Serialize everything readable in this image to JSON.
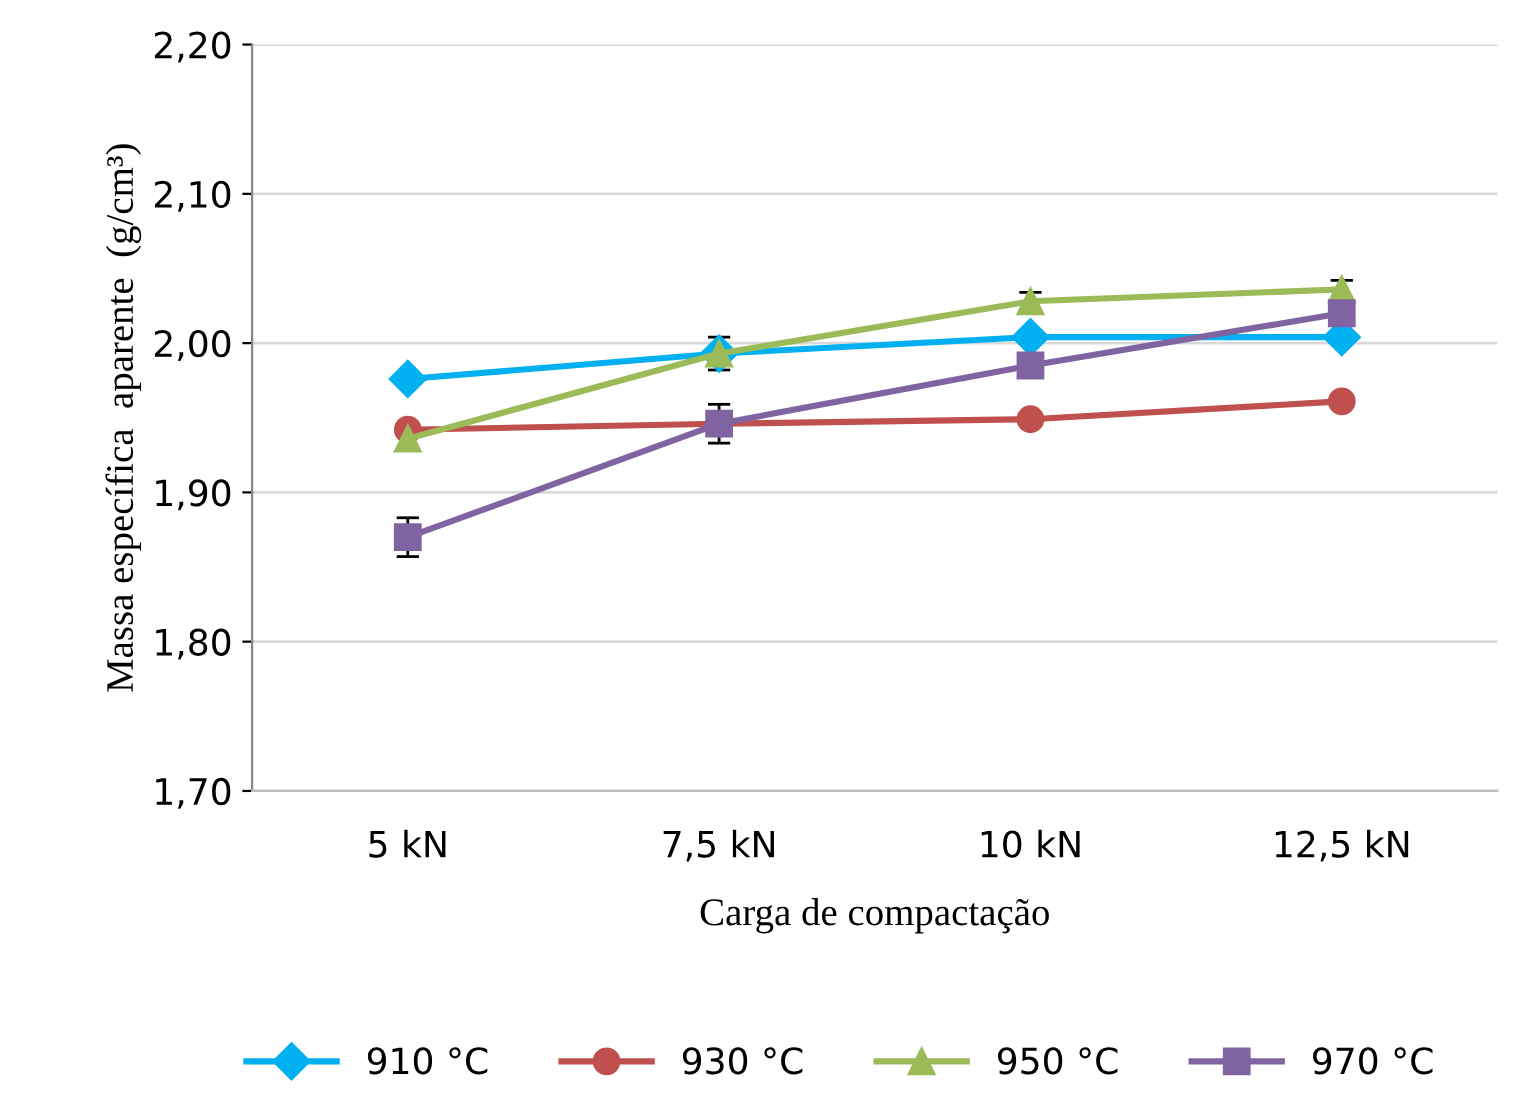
{
  "chart_data": {
    "type": "line",
    "xlabel": "Carga de compactação",
    "ylabel": "Massa específica  aparente  (g/cm³)",
    "categories": [
      "5 kN",
      "7,5 kN",
      "10 kN",
      "12,5 kN"
    ],
    "series": [
      {
        "name": "910 °C",
        "color": "#00b0f0",
        "marker": "diamond",
        "values": [
          1.976,
          1.993,
          2.004,
          2.004
        ]
      },
      {
        "name": "930 °C",
        "color": "#c0504d",
        "marker": "circle",
        "values": [
          1.942,
          1.946,
          1.949,
          1.961
        ]
      },
      {
        "name": "950 °C",
        "color": "#9bbb59",
        "marker": "triangle",
        "values": [
          1.936,
          1.993,
          2.028,
          2.036
        ],
        "errors": [
          null,
          0.011,
          0.006,
          0.006
        ]
      },
      {
        "name": "970 °C",
        "color": "#8064a2",
        "marker": "square",
        "values": [
          1.87,
          1.946,
          1.985,
          2.02
        ],
        "errors": [
          0.013,
          0.013,
          null,
          null
        ]
      }
    ],
    "ylim": [
      1.7,
      2.2
    ],
    "yticks": [
      {
        "value": 1.7,
        "label": "1,70"
      },
      {
        "value": 1.8,
        "label": "1,80"
      },
      {
        "value": 1.9,
        "label": "1,90"
      },
      {
        "value": 2.0,
        "label": "2,00"
      },
      {
        "value": 2.1,
        "label": "2,10"
      },
      {
        "value": 2.2,
        "label": "2,20"
      }
    ],
    "grid": "y",
    "legend": "bottom"
  }
}
